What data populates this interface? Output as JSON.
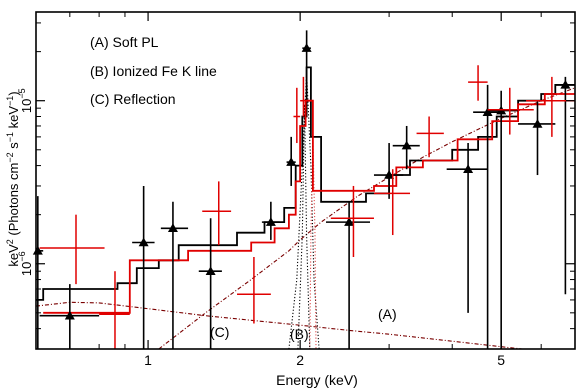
{
  "chart_data": {
    "type": "scatter",
    "title": "",
    "xlabel": "Energy (keV)",
    "ylabel_parts": [
      "keV",
      "2",
      " (Photons cm",
      "−2",
      " s",
      "−1",
      " keV",
      "−1",
      ")"
    ],
    "xscale": "log",
    "yscale": "log",
    "xlim": [
      0.6,
      7.0
    ],
    "ylim": [
      3e-07,
      3.5e-05
    ],
    "x_ticks": [
      {
        "value": 1,
        "label": "1"
      },
      {
        "value": 2,
        "label": "2"
      },
      {
        "value": 5,
        "label": "5"
      }
    ],
    "y_ticks": [
      {
        "value": 1e-06,
        "label_base": "10",
        "label_exp": "−6"
      },
      {
        "value": 1e-05,
        "label_base": "10",
        "label_exp": "−5"
      }
    ],
    "grid": false,
    "legend_placement": "top-left",
    "annotations": [
      {
        "text": "(A) Soft PL"
      },
      {
        "text": "(B) Ionized Fe K line"
      },
      {
        "text": "(C) Reflection"
      }
    ],
    "curve_labels": [
      {
        "text": "(A)",
        "x": 3.6,
        "y": 4.6e-07
      },
      {
        "text": "(B)",
        "x": 1.75,
        "y": 3.8e-07
      },
      {
        "text": "(C)",
        "x": 1.1,
        "y": 3.9e-07
      }
    ],
    "colors": {
      "series1": "#000000",
      "series2": "#e00000",
      "components": "#7a0000"
    },
    "series": [
      {
        "color": "#000000",
        "marker": "triangle",
        "points": [
          {
            "x": 0.605,
            "xlo": 0.6,
            "xhi": 0.62,
            "y": 1.2e-06,
            "ylo": 3e-07,
            "yhi": 2.6e-06
          },
          {
            "x": 0.7,
            "xlo": 0.61,
            "xhi": 0.8,
            "y": 4.8e-07,
            "ylo": 3e-07,
            "yhi": 7.5e-07
          },
          {
            "x": 0.98,
            "xlo": 0.93,
            "xhi": 1.03,
            "y": 1.35e-06,
            "ylo": 3e-07,
            "yhi": 3e-06
          },
          {
            "x": 1.12,
            "xlo": 1.06,
            "xhi": 1.2,
            "y": 1.65e-06,
            "ylo": 3e-07,
            "yhi": 2.4e-06
          },
          {
            "x": 1.33,
            "xlo": 1.26,
            "xhi": 1.4,
            "y": 9e-07,
            "ylo": 3e-07,
            "yhi": 1.9e-06
          },
          {
            "x": 1.75,
            "xlo": 1.68,
            "xhi": 1.82,
            "y": 1.8e-06,
            "ylo": 1.4e-06,
            "yhi": 2.4e-06
          },
          {
            "x": 1.92,
            "xlo": 1.88,
            "xhi": 1.96,
            "y": 4.2e-06,
            "ylo": 3e-06,
            "yhi": 6e-06
          },
          {
            "x": 2.06,
            "xlo": 2.02,
            "xhi": 2.1,
            "y": 2.1e-05,
            "ylo": 1.4e-05,
            "yhi": 2.7e-05
          },
          {
            "x": 2.5,
            "xlo": 2.25,
            "xhi": 2.75,
            "y": 1.8e-06,
            "ylo": 3e-07,
            "yhi": 2.4e-06
          },
          {
            "x": 3.0,
            "xlo": 2.8,
            "xhi": 3.2,
            "y": 3.5e-06,
            "ylo": 2.5e-06,
            "yhi": 5.5e-06
          },
          {
            "x": 3.25,
            "xlo": 3.05,
            "xhi": 3.45,
            "y": 5.3e-06,
            "ylo": 3.8e-06,
            "yhi": 7e-06
          },
          {
            "x": 4.3,
            "xlo": 3.9,
            "xhi": 4.7,
            "y": 3.8e-06,
            "ylo": 5e-07,
            "yhi": 5.5e-06
          },
          {
            "x": 4.7,
            "xlo": 4.4,
            "xhi": 5.0,
            "y": 8.5e-06,
            "ylo": 3e-07,
            "yhi": 1.25e-05
          },
          {
            "x": 5.0,
            "xlo": 4.7,
            "xhi": 5.4,
            "y": 8.7e-06,
            "ylo": 3e-07,
            "yhi": 1.15e-05
          },
          {
            "x": 5.9,
            "xlo": 5.4,
            "xhi": 6.4,
            "y": 7.2e-06,
            "ylo": 3.5e-06,
            "yhi": 1e-05
          },
          {
            "x": 6.7,
            "xlo": 6.4,
            "xhi": 7.0,
            "y": 1.25e-05,
            "ylo": 6.5e-07,
            "yhi": 1.4e-05
          }
        ],
        "model_steps": [
          [
            0.6,
            6e-07
          ],
          [
            0.62,
            7e-07
          ],
          [
            0.87,
            7.6e-07
          ],
          [
            0.95,
            9.4e-07
          ],
          [
            1.05,
            1.05e-06
          ],
          [
            1.15,
            1.3e-06
          ],
          [
            1.5,
            1.55e-06
          ],
          [
            1.7,
            1.8e-06
          ],
          [
            1.86,
            2.2e-06
          ],
          [
            1.96,
            4e-06
          ],
          [
            2.02,
            8e-06
          ],
          [
            2.06,
            1.6e-05
          ],
          [
            2.1,
            6e-06
          ],
          [
            2.2,
            2.4e-06
          ],
          [
            2.7,
            2.7e-06
          ],
          [
            3.0,
            3.5e-06
          ],
          [
            3.3,
            4.3e-06
          ],
          [
            4.0,
            5e-06
          ],
          [
            4.5,
            6e-06
          ],
          [
            4.9,
            8e-06
          ],
          [
            5.4,
            1e-05
          ],
          [
            6.0,
            1.1e-05
          ],
          [
            6.4,
            1.25e-05
          ],
          [
            7.0,
            1.25e-05
          ]
        ]
      },
      {
        "color": "#e00000",
        "marker": "cross",
        "points": [
          {
            "x": 0.72,
            "xlo": 0.61,
            "xhi": 0.82,
            "y": 1.25e-06,
            "ylo": 7.5e-07,
            "yhi": 2e-06
          },
          {
            "x": 0.86,
            "xlo": 0.8,
            "xhi": 0.92,
            "y": 4.9e-07,
            "ylo": 3e-07,
            "yhi": 9e-07
          },
          {
            "x": 1.38,
            "xlo": 1.28,
            "xhi": 1.46,
            "y": 2.1e-06,
            "ylo": 1.3e-06,
            "yhi": 3.2e-06
          },
          {
            "x": 1.62,
            "xlo": 1.5,
            "xhi": 1.75,
            "y": 6.5e-07,
            "ylo": 4.3e-07,
            "yhi": 1.1e-06
          },
          {
            "x": 1.97,
            "xlo": 1.94,
            "xhi": 2.0,
            "y": 8e-06,
            "ylo": 5.5e-06,
            "yhi": 1.2e-05
          },
          {
            "x": 2.03,
            "xlo": 2.0,
            "xhi": 2.08,
            "y": 1e-05,
            "ylo": 8e-06,
            "yhi": 1.4e-05
          },
          {
            "x": 2.55,
            "xlo": 2.3,
            "xhi": 2.8,
            "y": 1.9e-06,
            "ylo": 1.1e-06,
            "yhi": 3e-06
          },
          {
            "x": 3.05,
            "xlo": 2.8,
            "xhi": 3.3,
            "y": 2.7e-06,
            "ylo": 1.5e-06,
            "yhi": 3.8e-06
          },
          {
            "x": 3.6,
            "xlo": 3.4,
            "xhi": 3.85,
            "y": 6.3e-06,
            "ylo": 4.5e-06,
            "yhi": 8e-06
          },
          {
            "x": 4.5,
            "xlo": 4.3,
            "xhi": 4.7,
            "y": 1.3e-05,
            "ylo": 1e-05,
            "yhi": 1.65e-05
          },
          {
            "x": 5.2,
            "xlo": 4.7,
            "xhi": 5.8,
            "y": 8.8e-06,
            "ylo": 6.2e-06,
            "yhi": 1.2e-05
          },
          {
            "x": 6.3,
            "xlo": 5.6,
            "xhi": 7.0,
            "y": 1e-05,
            "ylo": 6e-06,
            "yhi": 1.4e-05
          }
        ],
        "model_steps": [
          [
            0.62,
            5e-07
          ],
          [
            0.8,
            5e-07
          ],
          [
            0.92,
            1.05e-06
          ],
          [
            1.2,
            1.2e-06
          ],
          [
            1.6,
            1.35e-06
          ],
          [
            1.78,
            1.65e-06
          ],
          [
            1.9,
            2e-06
          ],
          [
            1.96,
            3.2e-06
          ],
          [
            2.0,
            7e-06
          ],
          [
            2.05,
            1e-05
          ],
          [
            2.12,
            2.8e-06
          ],
          [
            2.3,
            2.8e-06
          ],
          [
            2.8,
            3e-06
          ],
          [
            3.1,
            3.9e-06
          ],
          [
            3.5,
            4.3e-06
          ],
          [
            4.1,
            5.8e-06
          ],
          [
            4.8,
            7.5e-06
          ],
          [
            5.4,
            9.5e-06
          ],
          [
            6.1,
            1.1e-05
          ],
          [
            7.0,
            1.1e-05
          ]
        ]
      }
    ],
    "components": [
      {
        "label": "(A)",
        "style": "dash-dot",
        "points": [
          [
            0.6,
            5.5e-07
          ],
          [
            0.7,
            5.8e-07
          ],
          [
            0.8,
            5.75e-07
          ],
          [
            1.0,
            5.3e-07
          ],
          [
            1.3,
            4.8e-07
          ],
          [
            1.6,
            4.5e-07
          ],
          [
            2.0,
            4.2e-07
          ],
          [
            2.5,
            3.9e-07
          ],
          [
            3.0,
            3.7e-07
          ],
          [
            4.0,
            3.35e-07
          ],
          [
            5.0,
            3.1e-07
          ],
          [
            5.5,
            3e-07
          ]
        ]
      },
      {
        "label": "(C)",
        "style": "dash-dot",
        "points": [
          [
            1.05,
            3e-07
          ],
          [
            1.3,
            5e-07
          ],
          [
            1.6,
            8e-07
          ],
          [
            1.9,
            1.2e-06
          ],
          [
            2.0,
            1.4e-06
          ],
          [
            2.2,
            1.8e-06
          ],
          [
            2.6,
            2.6e-06
          ],
          [
            3.0,
            3.4e-06
          ],
          [
            3.5,
            4.5e-06
          ],
          [
            4.0,
            5.6e-06
          ],
          [
            5.0,
            7.8e-06
          ],
          [
            6.0,
            1e-05
          ],
          [
            7.0,
            1.2e-05
          ]
        ]
      },
      {
        "label": "(B)",
        "style": "dotted",
        "points": [
          [
            1.9,
            3e-07
          ],
          [
            1.97,
            8e-07
          ],
          [
            2.02,
            4e-06
          ],
          [
            2.06,
            1.5e-05
          ],
          [
            2.1,
            4e-06
          ],
          [
            2.13,
            8e-07
          ],
          [
            2.18,
            3e-07
          ]
        ]
      },
      {
        "label": "(B)",
        "style": "dotted",
        "points": [
          [
            1.98,
            3e-07
          ],
          [
            2.02,
            1.5e-06
          ],
          [
            2.04,
            9.5e-06
          ],
          [
            2.06,
            1.5e-06
          ],
          [
            2.09,
            3e-07
          ]
        ]
      },
      {
        "label": "(B)",
        "style": "dotted-red",
        "points": [
          [
            2.09,
            3e-07
          ],
          [
            2.1,
            1.5e-06
          ],
          [
            2.12,
            6e-06
          ],
          [
            2.14,
            1.5e-06
          ],
          [
            2.15,
            3e-07
          ]
        ]
      }
    ]
  }
}
